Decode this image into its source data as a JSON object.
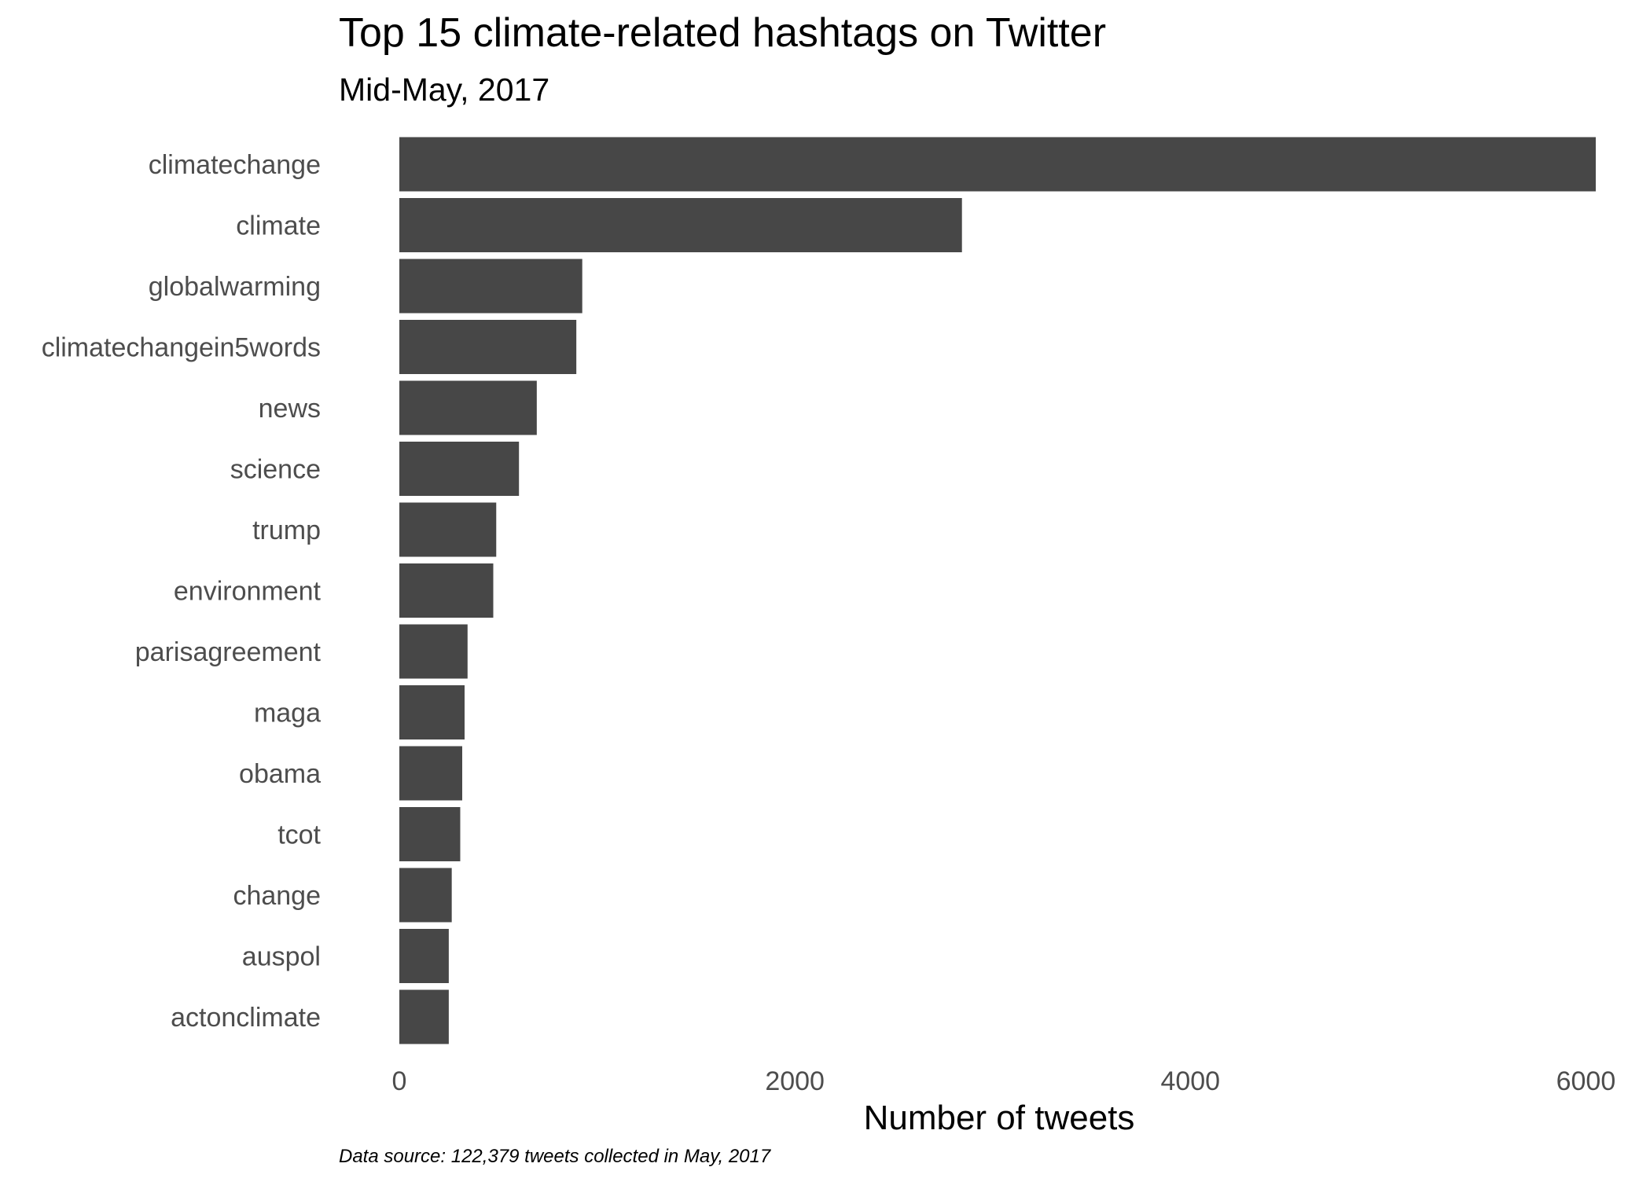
{
  "chart_data": {
    "type": "bar",
    "orientation": "horizontal",
    "title": "Top 15 climate-related hashtags on Twitter",
    "subtitle": "Mid-May, 2017",
    "xlabel": "Number of tweets",
    "ylabel": "",
    "caption": "Data source: 122,379 tweets collected in May, 2017",
    "xlim": [
      0,
      6050
    ],
    "xticks": [
      "0",
      "2000",
      "4000",
      "6000"
    ],
    "grid": false,
    "bar_color": "#474747",
    "categories": [
      "climatechange",
      "climate",
      "globalwarming",
      "climatechangein5words",
      "news",
      "science",
      "trump",
      "environment",
      "parisagreement",
      "maga",
      "obama",
      "tcot",
      "change",
      "auspol",
      "actonclimate"
    ],
    "values": [
      6050,
      2845,
      925,
      895,
      695,
      605,
      490,
      475,
      345,
      330,
      318,
      308,
      265,
      250,
      250
    ]
  }
}
